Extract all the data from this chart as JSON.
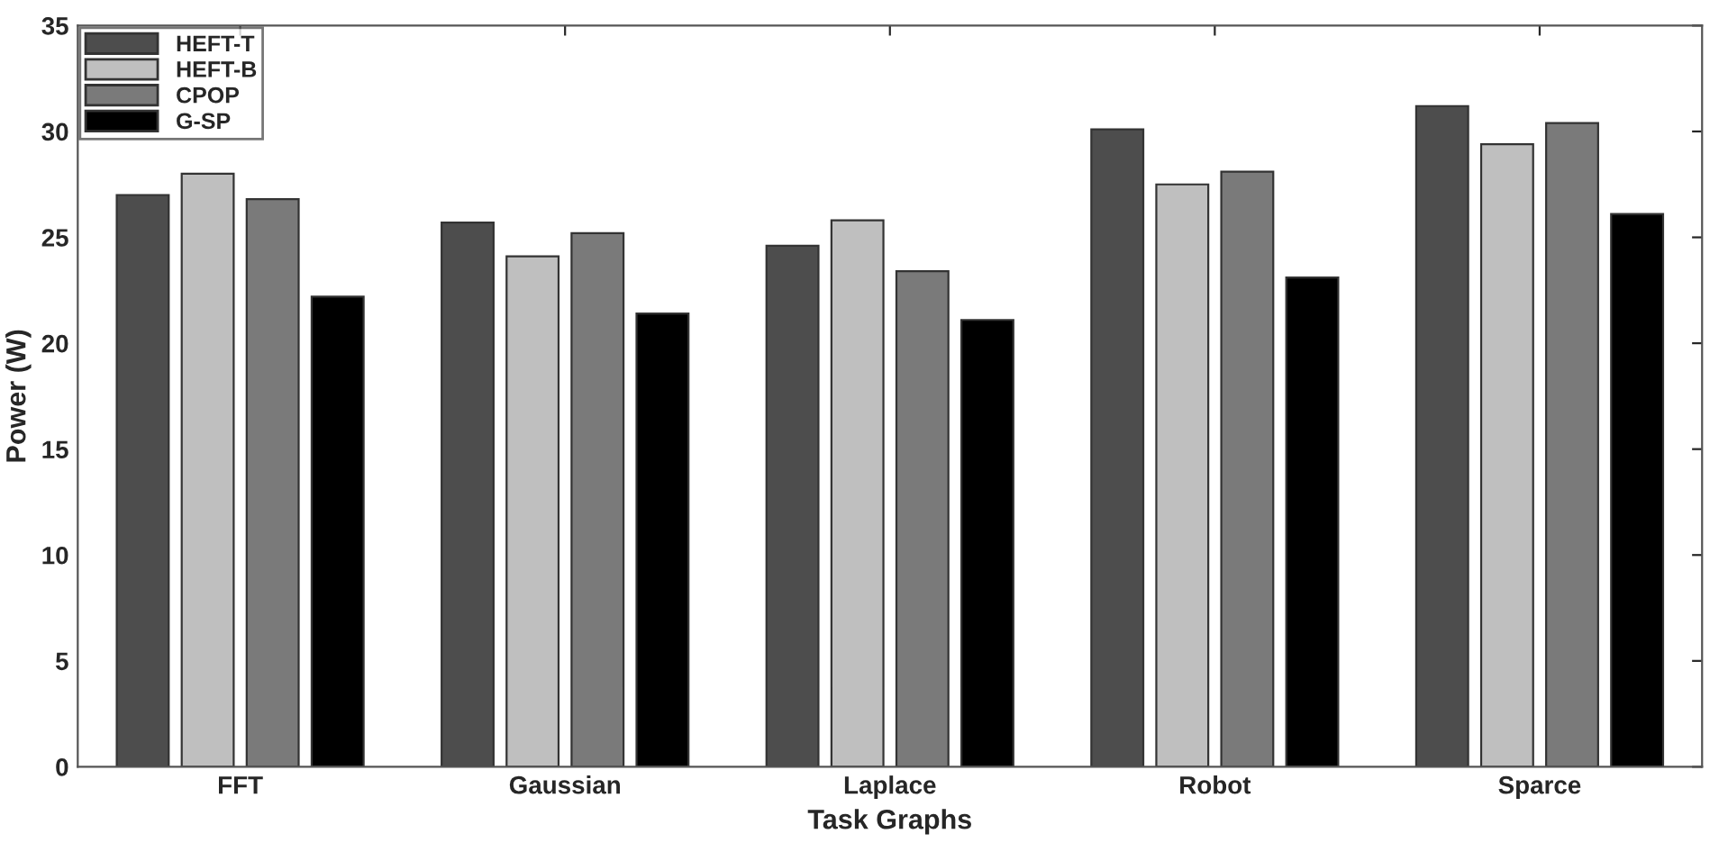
{
  "chart_data": {
    "type": "bar",
    "xlabel": "Task Graphs",
    "ylabel": "Power (W)",
    "categories": [
      "FFT",
      "Gaussian",
      "Laplace",
      "Robot",
      "Sparce"
    ],
    "series": [
      {
        "name": "HEFT-T",
        "color": "#4d4d4d",
        "values": [
          27.0,
          25.7,
          24.6,
          30.1,
          31.2
        ]
      },
      {
        "name": "HEFT-B",
        "color": "#bfbfbf",
        "values": [
          28.0,
          24.1,
          25.8,
          27.5,
          29.4
        ]
      },
      {
        "name": "CPOP",
        "color": "#7a7a7a",
        "values": [
          26.8,
          25.2,
          23.4,
          28.1,
          30.4
        ]
      },
      {
        "name": "G-SP",
        "color": "#000000",
        "values": [
          22.2,
          21.4,
          21.1,
          23.1,
          26.1
        ]
      }
    ],
    "ylim": [
      0,
      35
    ],
    "yticks": [
      0,
      5,
      10,
      15,
      20,
      25,
      30,
      35
    ],
    "grid": false,
    "legend": "top left"
  }
}
